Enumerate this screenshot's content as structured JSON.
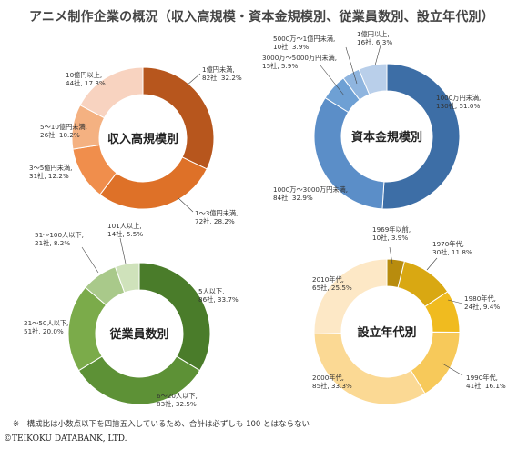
{
  "title": "アニメ制作企業の概況（収入高規模・資本金規模別、従業員数別、設立年代別）",
  "note": "※　構成比は小数点以下を四捨五入しているため、合計は必ずしも 100 とはならない",
  "copyright": "©TEIKOKU DATABANK, LTD.",
  "chart_data": [
    {
      "type": "pie",
      "title": "収入高規模別",
      "slices": [
        {
          "label": "1億円未満",
          "count": "82社",
          "pct": "32.2%",
          "value": 32.2,
          "color": "#b7561d"
        },
        {
          "label": "1～3億円未満",
          "count": "72社",
          "pct": "28.2%",
          "value": 28.2,
          "color": "#de7128"
        },
        {
          "label": "3～5億円未満",
          "count": "31社",
          "pct": "12.2%",
          "value": 12.2,
          "color": "#f08e4c"
        },
        {
          "label": "5～10億円未満",
          "count": "26社",
          "pct": "10.2%",
          "value": 10.2,
          "color": "#f4b181"
        },
        {
          "label": "10億円以上",
          "count": "44社",
          "pct": "17.3%",
          "value": 17.3,
          "color": "#f8d3c0"
        }
      ]
    },
    {
      "type": "pie",
      "title": "資本金規模別",
      "slices": [
        {
          "label": "1000万円未満",
          "count": "130社",
          "pct": "51.0%",
          "value": 51.0,
          "color": "#3d6ea6"
        },
        {
          "label": "1000万～3000万円未満",
          "count": "84社",
          "pct": "32.9%",
          "value": 32.9,
          "color": "#5b8ec8"
        },
        {
          "label": "3000万～5000万円未満",
          "count": "15社",
          "pct": "5.9%",
          "value": 5.9,
          "color": "#6ea0d4"
        },
        {
          "label": "5000万～1億円未満",
          "count": "10社",
          "pct": "3.9%",
          "value": 3.9,
          "color": "#8fb5df"
        },
        {
          "label": "1億円以上",
          "count": "16社",
          "pct": "6.3%",
          "value": 6.3,
          "color": "#b9cfea"
        }
      ]
    },
    {
      "type": "pie",
      "title": "従業員数別",
      "slices": [
        {
          "label": "5人以下",
          "count": "86社",
          "pct": "33.7%",
          "value": 33.7,
          "color": "#4a7c2a"
        },
        {
          "label": "6～20人以下",
          "count": "83社",
          "pct": "32.5%",
          "value": 32.5,
          "color": "#5d9136"
        },
        {
          "label": "21～50人以下",
          "count": "51社",
          "pct": "20.0%",
          "value": 20.0,
          "color": "#7bab4a"
        },
        {
          "label": "51～100人以下",
          "count": "21社",
          "pct": "8.2%",
          "value": 8.2,
          "color": "#a9c98a"
        },
        {
          "label": "101人以上",
          "count": "14社",
          "pct": "5.5%",
          "value": 5.5,
          "color": "#cfe2bb"
        }
      ]
    },
    {
      "type": "pie",
      "title": "設立年代別",
      "slices": [
        {
          "label": "1969年以前",
          "count": "10社",
          "pct": "3.9%",
          "value": 3.9,
          "color": "#b88c0e"
        },
        {
          "label": "1970年代",
          "count": "30社",
          "pct": "11.8%",
          "value": 11.8,
          "color": "#d9a812"
        },
        {
          "label": "1980年代",
          "count": "24社",
          "pct": "9.4%",
          "value": 9.4,
          "color": "#f0bb1f"
        },
        {
          "label": "1990年代",
          "count": "41社",
          "pct": "16.1%",
          "value": 16.1,
          "color": "#f7c95a"
        },
        {
          "label": "2000年代",
          "count": "85社",
          "pct": "33.3%",
          "value": 33.3,
          "color": "#fbd994"
        },
        {
          "label": "2010年代",
          "count": "65社",
          "pct": "25.5%",
          "value": 25.5,
          "color": "#fde8c6"
        }
      ]
    }
  ]
}
